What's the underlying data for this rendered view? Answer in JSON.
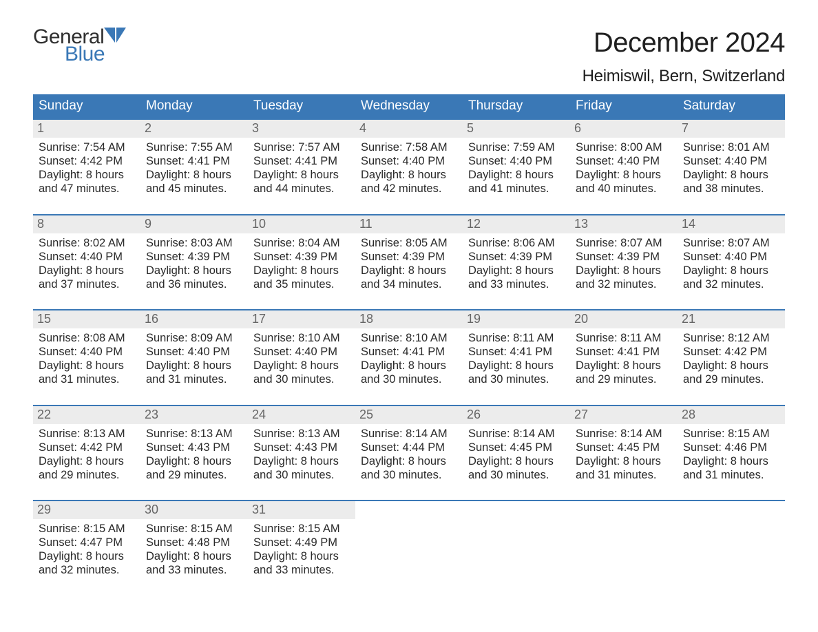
{
  "logo": {
    "word1": "General",
    "word2": "Blue",
    "brand_color": "#3a78b6",
    "text_color": "#2f2f2f"
  },
  "title": "December 2024",
  "location": "Heimiswil, Bern, Switzerland",
  "colors": {
    "header_bg": "#3a78b6",
    "header_text": "#ffffff",
    "daynum_bg": "#ececec",
    "daynum_text": "#666666",
    "week_border": "#3a78b6",
    "body_text": "#2a2a2a",
    "page_bg": "#ffffff"
  },
  "fonts": {
    "title_pt": 40,
    "location_pt": 24,
    "dayheader_pt": 19,
    "daynum_pt": 18,
    "info_pt": 16.5
  },
  "day_names": [
    "Sunday",
    "Monday",
    "Tuesday",
    "Wednesday",
    "Thursday",
    "Friday",
    "Saturday"
  ],
  "weeks": [
    [
      {
        "day": "1",
        "sunrise": "Sunrise: 7:54 AM",
        "sunset": "Sunset: 4:42 PM",
        "dl1": "Daylight: 8 hours",
        "dl2": "and 47 minutes."
      },
      {
        "day": "2",
        "sunrise": "Sunrise: 7:55 AM",
        "sunset": "Sunset: 4:41 PM",
        "dl1": "Daylight: 8 hours",
        "dl2": "and 45 minutes."
      },
      {
        "day": "3",
        "sunrise": "Sunrise: 7:57 AM",
        "sunset": "Sunset: 4:41 PM",
        "dl1": "Daylight: 8 hours",
        "dl2": "and 44 minutes."
      },
      {
        "day": "4",
        "sunrise": "Sunrise: 7:58 AM",
        "sunset": "Sunset: 4:40 PM",
        "dl1": "Daylight: 8 hours",
        "dl2": "and 42 minutes."
      },
      {
        "day": "5",
        "sunrise": "Sunrise: 7:59 AM",
        "sunset": "Sunset: 4:40 PM",
        "dl1": "Daylight: 8 hours",
        "dl2": "and 41 minutes."
      },
      {
        "day": "6",
        "sunrise": "Sunrise: 8:00 AM",
        "sunset": "Sunset: 4:40 PM",
        "dl1": "Daylight: 8 hours",
        "dl2": "and 40 minutes."
      },
      {
        "day": "7",
        "sunrise": "Sunrise: 8:01 AM",
        "sunset": "Sunset: 4:40 PM",
        "dl1": "Daylight: 8 hours",
        "dl2": "and 38 minutes."
      }
    ],
    [
      {
        "day": "8",
        "sunrise": "Sunrise: 8:02 AM",
        "sunset": "Sunset: 4:40 PM",
        "dl1": "Daylight: 8 hours",
        "dl2": "and 37 minutes."
      },
      {
        "day": "9",
        "sunrise": "Sunrise: 8:03 AM",
        "sunset": "Sunset: 4:39 PM",
        "dl1": "Daylight: 8 hours",
        "dl2": "and 36 minutes."
      },
      {
        "day": "10",
        "sunrise": "Sunrise: 8:04 AM",
        "sunset": "Sunset: 4:39 PM",
        "dl1": "Daylight: 8 hours",
        "dl2": "and 35 minutes."
      },
      {
        "day": "11",
        "sunrise": "Sunrise: 8:05 AM",
        "sunset": "Sunset: 4:39 PM",
        "dl1": "Daylight: 8 hours",
        "dl2": "and 34 minutes."
      },
      {
        "day": "12",
        "sunrise": "Sunrise: 8:06 AM",
        "sunset": "Sunset: 4:39 PM",
        "dl1": "Daylight: 8 hours",
        "dl2": "and 33 minutes."
      },
      {
        "day": "13",
        "sunrise": "Sunrise: 8:07 AM",
        "sunset": "Sunset: 4:39 PM",
        "dl1": "Daylight: 8 hours",
        "dl2": "and 32 minutes."
      },
      {
        "day": "14",
        "sunrise": "Sunrise: 8:07 AM",
        "sunset": "Sunset: 4:40 PM",
        "dl1": "Daylight: 8 hours",
        "dl2": "and 32 minutes."
      }
    ],
    [
      {
        "day": "15",
        "sunrise": "Sunrise: 8:08 AM",
        "sunset": "Sunset: 4:40 PM",
        "dl1": "Daylight: 8 hours",
        "dl2": "and 31 minutes."
      },
      {
        "day": "16",
        "sunrise": "Sunrise: 8:09 AM",
        "sunset": "Sunset: 4:40 PM",
        "dl1": "Daylight: 8 hours",
        "dl2": "and 31 minutes."
      },
      {
        "day": "17",
        "sunrise": "Sunrise: 8:10 AM",
        "sunset": "Sunset: 4:40 PM",
        "dl1": "Daylight: 8 hours",
        "dl2": "and 30 minutes."
      },
      {
        "day": "18",
        "sunrise": "Sunrise: 8:10 AM",
        "sunset": "Sunset: 4:41 PM",
        "dl1": "Daylight: 8 hours",
        "dl2": "and 30 minutes."
      },
      {
        "day": "19",
        "sunrise": "Sunrise: 8:11 AM",
        "sunset": "Sunset: 4:41 PM",
        "dl1": "Daylight: 8 hours",
        "dl2": "and 30 minutes."
      },
      {
        "day": "20",
        "sunrise": "Sunrise: 8:11 AM",
        "sunset": "Sunset: 4:41 PM",
        "dl1": "Daylight: 8 hours",
        "dl2": "and 29 minutes."
      },
      {
        "day": "21",
        "sunrise": "Sunrise: 8:12 AM",
        "sunset": "Sunset: 4:42 PM",
        "dl1": "Daylight: 8 hours",
        "dl2": "and 29 minutes."
      }
    ],
    [
      {
        "day": "22",
        "sunrise": "Sunrise: 8:13 AM",
        "sunset": "Sunset: 4:42 PM",
        "dl1": "Daylight: 8 hours",
        "dl2": "and 29 minutes."
      },
      {
        "day": "23",
        "sunrise": "Sunrise: 8:13 AM",
        "sunset": "Sunset: 4:43 PM",
        "dl1": "Daylight: 8 hours",
        "dl2": "and 29 minutes."
      },
      {
        "day": "24",
        "sunrise": "Sunrise: 8:13 AM",
        "sunset": "Sunset: 4:43 PM",
        "dl1": "Daylight: 8 hours",
        "dl2": "and 30 minutes."
      },
      {
        "day": "25",
        "sunrise": "Sunrise: 8:14 AM",
        "sunset": "Sunset: 4:44 PM",
        "dl1": "Daylight: 8 hours",
        "dl2": "and 30 minutes."
      },
      {
        "day": "26",
        "sunrise": "Sunrise: 8:14 AM",
        "sunset": "Sunset: 4:45 PM",
        "dl1": "Daylight: 8 hours",
        "dl2": "and 30 minutes."
      },
      {
        "day": "27",
        "sunrise": "Sunrise: 8:14 AM",
        "sunset": "Sunset: 4:45 PM",
        "dl1": "Daylight: 8 hours",
        "dl2": "and 31 minutes."
      },
      {
        "day": "28",
        "sunrise": "Sunrise: 8:15 AM",
        "sunset": "Sunset: 4:46 PM",
        "dl1": "Daylight: 8 hours",
        "dl2": "and 31 minutes."
      }
    ],
    [
      {
        "day": "29",
        "sunrise": "Sunrise: 8:15 AM",
        "sunset": "Sunset: 4:47 PM",
        "dl1": "Daylight: 8 hours",
        "dl2": "and 32 minutes."
      },
      {
        "day": "30",
        "sunrise": "Sunrise: 8:15 AM",
        "sunset": "Sunset: 4:48 PM",
        "dl1": "Daylight: 8 hours",
        "dl2": "and 33 minutes."
      },
      {
        "day": "31",
        "sunrise": "Sunrise: 8:15 AM",
        "sunset": "Sunset: 4:49 PM",
        "dl1": "Daylight: 8 hours",
        "dl2": "and 33 minutes."
      },
      null,
      null,
      null,
      null
    ]
  ]
}
